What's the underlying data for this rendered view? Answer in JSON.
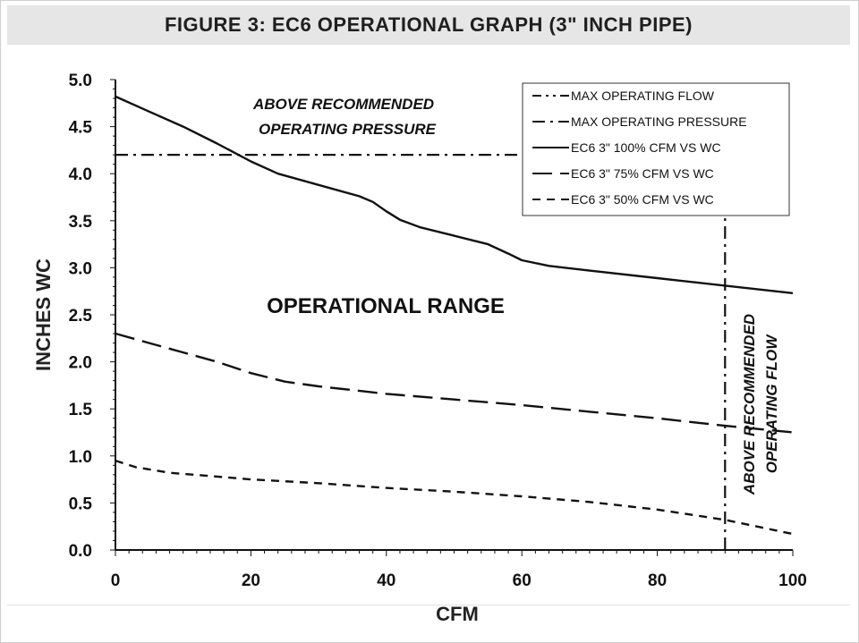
{
  "chart_data": {
    "type": "line",
    "title": "FIGURE 3: EC6 OPERATIONAL GRAPH (3\" INCH PIPE)",
    "xlabel": "CFM",
    "ylabel": "INCHES WC",
    "xlim": [
      0,
      100
    ],
    "ylim": [
      0,
      5
    ],
    "x_ticks": [
      "0",
      "20",
      "40",
      "60",
      "80",
      "100"
    ],
    "x_tick_values": [
      0,
      20,
      40,
      60,
      80,
      100
    ],
    "y_ticks": [
      "0.0",
      "0.5",
      "1.0",
      "1.5",
      "2.0",
      "2.5",
      "3.0",
      "3.5",
      "4.0",
      "4.5",
      "5.0"
    ],
    "y_tick_values": [
      0,
      0.5,
      1,
      1.5,
      2,
      2.5,
      3,
      3.5,
      4,
      4.5,
      5
    ],
    "grid": false,
    "legend_position": "top-right",
    "series": [
      {
        "name": "EC6 3\" 100%  CFM VS WC",
        "style": "solid",
        "x": [
          0,
          5,
          10,
          15,
          20,
          24,
          30,
          36,
          38,
          40,
          42,
          45,
          50,
          55,
          58,
          60,
          64,
          70,
          80,
          90,
          100
        ],
        "y": [
          4.82,
          4.66,
          4.5,
          4.32,
          4.13,
          4.0,
          3.88,
          3.76,
          3.7,
          3.6,
          3.51,
          3.43,
          3.34,
          3.25,
          3.15,
          3.08,
          3.02,
          2.97,
          2.89,
          2.81,
          2.73
        ]
      },
      {
        "name": "EC6 3\" 75%  CFM VS WC",
        "style": "long-dash",
        "x": [
          0,
          5,
          10,
          15,
          20,
          25,
          30,
          40,
          50,
          60,
          70,
          80,
          90,
          100
        ],
        "y": [
          2.3,
          2.2,
          2.1,
          2.0,
          1.88,
          1.79,
          1.74,
          1.66,
          1.6,
          1.54,
          1.47,
          1.4,
          1.32,
          1.25
        ]
      },
      {
        "name": "EC6 3\" 50%  CFM VS WC",
        "style": "short-dash",
        "x": [
          0,
          3,
          8,
          15,
          20,
          30,
          40,
          50,
          60,
          70,
          80,
          90,
          100
        ],
        "y": [
          0.95,
          0.88,
          0.82,
          0.78,
          0.75,
          0.71,
          0.66,
          0.62,
          0.57,
          0.51,
          0.43,
          0.32,
          0.17
        ]
      }
    ],
    "reference_lines": [
      {
        "name": "MAX OPERATING FLOW",
        "orientation": "vertical",
        "x": 90,
        "style": "dash-dot"
      },
      {
        "name": "MAX OPERATING PRESSURE",
        "orientation": "horizontal",
        "y": 4.2,
        "style": "dash-dot"
      }
    ],
    "legend": [
      {
        "label": "MAX OPERATING FLOW",
        "style": "dash-dot-dot"
      },
      {
        "label": "MAX OPERATING PRESSURE",
        "style": "dash-dot"
      },
      {
        "label": "EC6 3\" 100%  CFM VS WC",
        "style": "solid"
      },
      {
        "label": "EC6 3\" 75%  CFM VS WC",
        "style": "long-dash"
      },
      {
        "label": "EC6 3\" 50%  CFM VS WC",
        "style": "short-dash"
      }
    ],
    "annotations": {
      "above_pressure_line1": "ABOVE RECOMMENDED",
      "above_pressure_line2": "OPERATING PRESSURE",
      "operational_range": "OPERATIONAL RANGE",
      "above_flow_line1": "ABOVE RECOMMENDED",
      "above_flow_line2": "OPERATING FLOW"
    }
  }
}
